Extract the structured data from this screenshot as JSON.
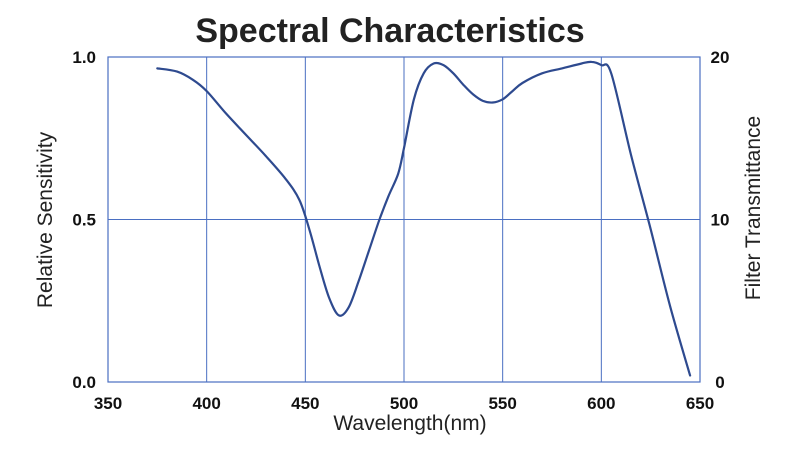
{
  "chart_data": {
    "type": "line",
    "title": "Spectral Characteristics",
    "xlabel": "Wavelength(nm)",
    "ylabel": "Relative Sensitivity",
    "y2label": "Filter Transmittance",
    "xlim": [
      350,
      650
    ],
    "ylim": [
      0,
      1
    ],
    "y2lim": [
      0,
      20
    ],
    "x_ticks": [
      "350",
      "400",
      "450",
      "500",
      "550",
      "600",
      "650"
    ],
    "y_ticks": [
      "0.0",
      "0.5",
      "1.0"
    ],
    "y2_ticks": [
      "0",
      "10",
      "20"
    ],
    "grid": true,
    "legend": "none",
    "series": [
      {
        "color": "#2e4a8f",
        "x": [
          375,
          385,
          393,
          400,
          410,
          420,
          430,
          440,
          447,
          452,
          457,
          462,
          467,
          472,
          477,
          482,
          487,
          492,
          497,
          500,
          505,
          510,
          515,
          520,
          525,
          530,
          535,
          540,
          545,
          550,
          555,
          560,
          570,
          580,
          590,
          595,
          600,
          605,
          615,
          625,
          635,
          645
        ],
        "y": [
          0.965,
          0.955,
          0.93,
          0.895,
          0.825,
          0.76,
          0.695,
          0.625,
          0.56,
          0.47,
          0.36,
          0.26,
          0.205,
          0.23,
          0.31,
          0.4,
          0.49,
          0.57,
          0.64,
          0.72,
          0.87,
          0.95,
          0.98,
          0.975,
          0.95,
          0.915,
          0.885,
          0.865,
          0.86,
          0.87,
          0.895,
          0.92,
          0.95,
          0.965,
          0.98,
          0.985,
          0.975,
          0.95,
          0.7,
          0.47,
          0.23,
          0.02
        ]
      }
    ]
  }
}
